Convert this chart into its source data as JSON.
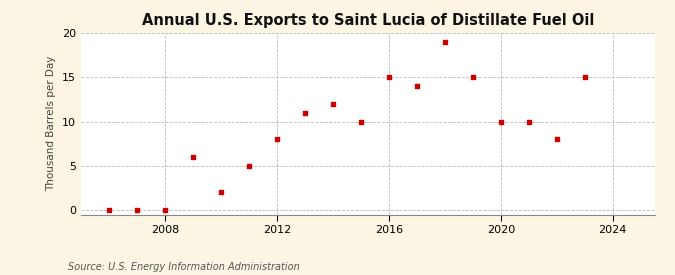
{
  "title": "Annual U.S. Exports to Saint Lucia of Distillate Fuel Oil",
  "ylabel": "Thousand Barrels per Day",
  "source": "Source: U.S. Energy Information Administration",
  "background_color": "#fdf5e4",
  "plot_bg_color": "#ffffff",
  "marker_color": "#cc0000",
  "years": [
    2006,
    2007,
    2008,
    2009,
    2010,
    2011,
    2012,
    2013,
    2014,
    2015,
    2016,
    2017,
    2018,
    2019,
    2020,
    2021,
    2022,
    2023
  ],
  "values": [
    0.03,
    0.04,
    0.04,
    6.0,
    2.0,
    5.0,
    8.0,
    11.0,
    12.0,
    10.0,
    15.0,
    14.0,
    19.0,
    15.0,
    10.0,
    10.0,
    8.0,
    15.0
  ],
  "xlim": [
    2005.0,
    2025.5
  ],
  "ylim": [
    -0.5,
    20
  ],
  "yticks": [
    0,
    5,
    10,
    15,
    20
  ],
  "xticks": [
    2008,
    2012,
    2016,
    2020,
    2024
  ],
  "grid_color": "#bbbbbb",
  "title_fontsize": 10.5,
  "axis_fontsize": 8,
  "ylabel_fontsize": 7.5,
  "source_fontsize": 7
}
